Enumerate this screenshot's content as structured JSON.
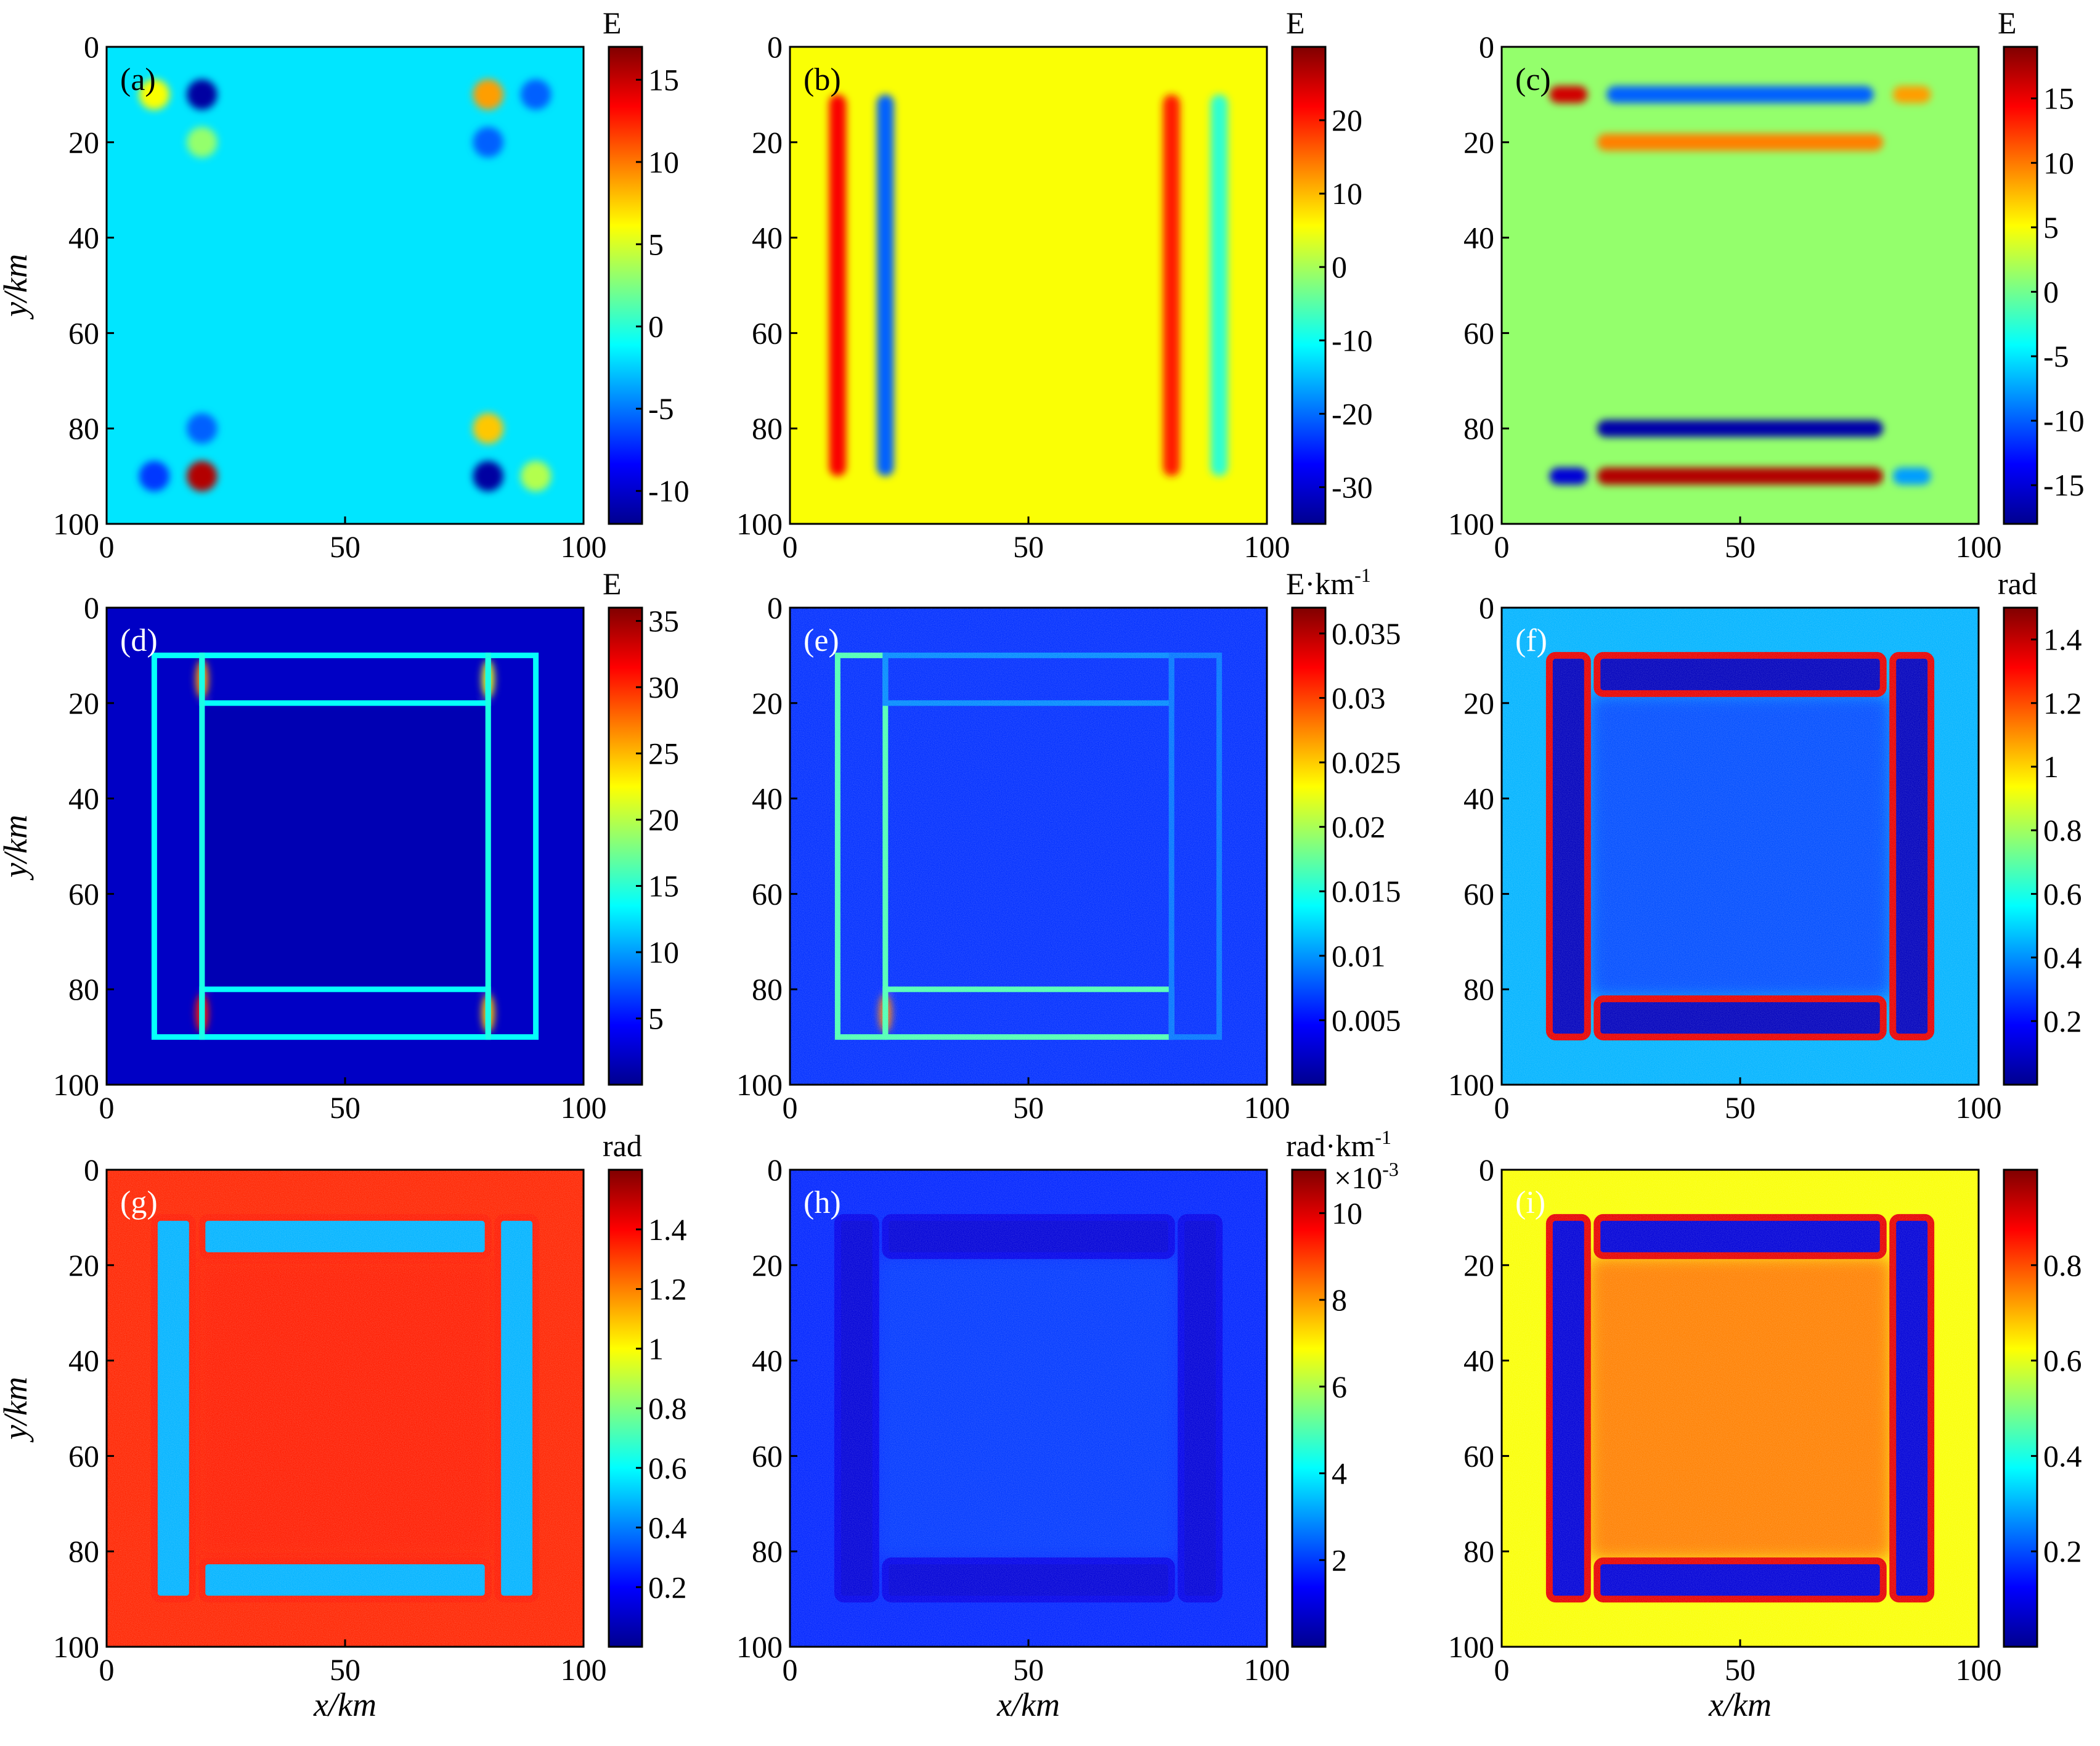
{
  "colors": {
    "jet": [
      "#00008f",
      "#0000ff",
      "#0080ff",
      "#00ffff",
      "#80ff80",
      "#ffff00",
      "#ff8000",
      "#ff0000",
      "#800000"
    ],
    "label_dark": "#000000",
    "label_light": "#ffffff"
  },
  "axis_titles": {
    "x": "x/km",
    "y": "y/km"
  },
  "chart_data": [
    {
      "type": "heatmap",
      "panel_label": "(a)",
      "label_light": false,
      "pattern": "blobs",
      "background": 0.35,
      "xlim": [
        0,
        100
      ],
      "ylim": [
        100,
        0
      ],
      "xticks": [
        "0",
        "50",
        "100"
      ],
      "yticks": [
        "0",
        "20",
        "40",
        "60",
        "80",
        "100"
      ],
      "colorbar": {
        "unit": "E",
        "min": -12,
        "max": 17,
        "ticks": [
          {
            "v": -10,
            "t": "-10"
          },
          {
            "v": -5,
            "t": "-5"
          },
          {
            "v": 0,
            "t": "0"
          },
          {
            "v": 5,
            "t": "5"
          },
          {
            "v": 10,
            "t": "10"
          },
          {
            "v": 15,
            "t": "15"
          }
        ]
      },
      "features": [
        {
          "x": 10,
          "y": 10,
          "v": 0.62
        },
        {
          "x": 20,
          "y": 10,
          "v": 0.02
        },
        {
          "x": 20,
          "y": 20,
          "v": 0.52
        },
        {
          "x": 80,
          "y": 10,
          "v": 0.72
        },
        {
          "x": 90,
          "y": 10,
          "v": 0.22
        },
        {
          "x": 80,
          "y": 20,
          "v": 0.22
        },
        {
          "x": 10,
          "y": 90,
          "v": 0.18
        },
        {
          "x": 20,
          "y": 90,
          "v": 0.95
        },
        {
          "x": 20,
          "y": 80,
          "v": 0.22
        },
        {
          "x": 80,
          "y": 90,
          "v": 0.02
        },
        {
          "x": 90,
          "y": 90,
          "v": 0.55
        },
        {
          "x": 80,
          "y": 80,
          "v": 0.68
        }
      ]
    },
    {
      "type": "heatmap",
      "panel_label": "(b)",
      "label_light": false,
      "pattern": "vbars",
      "background": 0.62,
      "xlim": [
        0,
        100
      ],
      "ylim": [
        100,
        0
      ],
      "xticks": [
        "0",
        "50",
        "100"
      ],
      "yticks": [
        "0",
        "20",
        "40",
        "60",
        "80",
        "100"
      ],
      "colorbar": {
        "unit": "E",
        "min": -35,
        "max": 30,
        "ticks": [
          {
            "v": -30,
            "t": "-30"
          },
          {
            "v": -20,
            "t": "-20"
          },
          {
            "v": -10,
            "t": "-10"
          },
          {
            "v": 0,
            "t": "0"
          },
          {
            "v": 10,
            "t": "10"
          },
          {
            "v": 20,
            "t": "20"
          }
        ]
      },
      "features": [
        {
          "x": 10,
          "y1": 10,
          "y2": 90,
          "v": 0.88
        },
        {
          "x": 20,
          "y1": 10,
          "y2": 90,
          "v": 0.22
        },
        {
          "x": 80,
          "y1": 10,
          "y2": 90,
          "v": 0.85
        },
        {
          "x": 90,
          "y1": 10,
          "y2": 90,
          "v": 0.42
        }
      ]
    },
    {
      "type": "heatmap",
      "panel_label": "(c)",
      "label_light": false,
      "pattern": "hbars",
      "background": 0.52,
      "xlim": [
        0,
        100
      ],
      "ylim": [
        100,
        0
      ],
      "xticks": [
        "0",
        "50",
        "100"
      ],
      "yticks": [
        "0",
        "20",
        "40",
        "60",
        "80",
        "100"
      ],
      "colorbar": {
        "unit": "E",
        "min": -18,
        "max": 19,
        "ticks": [
          {
            "v": -15,
            "t": "-15"
          },
          {
            "v": -10,
            "t": "-10"
          },
          {
            "v": -5,
            "t": "-5"
          },
          {
            "v": 0,
            "t": "0"
          },
          {
            "v": 5,
            "t": "5"
          },
          {
            "v": 10,
            "t": "10"
          },
          {
            "v": 15,
            "t": "15"
          }
        ]
      },
      "features": [
        {
          "y": 10,
          "x1": 10,
          "x2": 18,
          "v": 0.92
        },
        {
          "y": 10,
          "x1": 22,
          "x2": 78,
          "v": 0.22
        },
        {
          "y": 10,
          "x1": 82,
          "x2": 90,
          "v": 0.72
        },
        {
          "y": 20,
          "x1": 20,
          "x2": 80,
          "v": 0.75
        },
        {
          "y": 80,
          "x1": 20,
          "x2": 80,
          "v": 0.03
        },
        {
          "y": 90,
          "x1": 10,
          "x2": 18,
          "v": 0.08
        },
        {
          "y": 90,
          "x1": 20,
          "x2": 80,
          "v": 0.95
        },
        {
          "y": 90,
          "x1": 82,
          "x2": 90,
          "v": 0.28
        }
      ]
    },
    {
      "type": "heatmap",
      "panel_label": "(d)",
      "label_light": true,
      "pattern": "edges",
      "background": 0.06,
      "inner": 0.04,
      "xlim": [
        0,
        100
      ],
      "ylim": [
        100,
        0
      ],
      "xticks": [
        "0",
        "50",
        "100"
      ],
      "yticks": [
        "0",
        "20",
        "40",
        "60",
        "80",
        "100"
      ],
      "colorbar": {
        "unit": "E",
        "min": 0,
        "max": 36,
        "ticks": [
          {
            "v": 5,
            "t": "5"
          },
          {
            "v": 10,
            "t": "10"
          },
          {
            "v": 15,
            "t": "15"
          },
          {
            "v": 20,
            "t": "20"
          },
          {
            "v": 25,
            "t": "25"
          },
          {
            "v": 30,
            "t": "30"
          },
          {
            "v": 35,
            "t": "35"
          }
        ]
      },
      "features": [
        {
          "x1": 10,
          "y1": 10,
          "x2": 90,
          "y2": 90,
          "v": 0.38
        },
        {
          "x1": 20,
          "y1": 10,
          "x2": 80,
          "y2": 20,
          "v": 0.38
        },
        {
          "x1": 20,
          "y1": 80,
          "x2": 80,
          "y2": 90,
          "v": 0.38
        },
        {
          "x1": 20,
          "y1": 10,
          "x2": 20,
          "y2": 90,
          "v": 0.4
        },
        {
          "x1": 80,
          "y1": 10,
          "x2": 80,
          "y2": 90,
          "v": 0.4
        }
      ],
      "hot": [
        {
          "x": 20,
          "y": 15,
          "v": 0.72
        },
        {
          "x": 80,
          "y": 15,
          "v": 0.6
        },
        {
          "x": 20,
          "y": 85,
          "v": 0.85
        },
        {
          "x": 80,
          "y": 85,
          "v": 0.68
        }
      ]
    },
    {
      "type": "heatmap",
      "panel_label": "(e)",
      "label_light": true,
      "pattern": "edges",
      "background": 0.17,
      "inner": 0.17,
      "noise": true,
      "xlim": [
        0,
        100
      ],
      "ylim": [
        100,
        0
      ],
      "xticks": [
        "0",
        "50",
        "100"
      ],
      "yticks": [
        "0",
        "20",
        "40",
        "60",
        "80",
        "100"
      ],
      "colorbar": {
        "unit": "E·km-1",
        "min": 0,
        "max": 0.037,
        "ticks": [
          {
            "v": 0.005,
            "t": "0.005"
          },
          {
            "v": 0.01,
            "t": "0.01"
          },
          {
            "v": 0.015,
            "t": "0.015"
          },
          {
            "v": 0.02,
            "t": "0.02"
          },
          {
            "v": 0.025,
            "t": "0.025"
          },
          {
            "v": 0.03,
            "t": "0.03"
          },
          {
            "v": 0.035,
            "t": "0.035"
          }
        ]
      },
      "features": [
        {
          "x1": 10,
          "y1": 10,
          "x2": 20,
          "y2": 90,
          "v": 0.45
        },
        {
          "x1": 20,
          "y1": 80,
          "x2": 80,
          "y2": 90,
          "v": 0.45
        },
        {
          "x1": 20,
          "y1": 10,
          "x2": 80,
          "y2": 20,
          "v": 0.26
        },
        {
          "x1": 80,
          "y1": 10,
          "x2": 90,
          "y2": 90,
          "v": 0.24
        }
      ],
      "hot": [
        {
          "x": 20,
          "y": 85,
          "v": 0.75
        }
      ]
    },
    {
      "type": "heatmap",
      "panel_label": "(f)",
      "label_light": true,
      "pattern": "frames",
      "background": 0.3,
      "inner": 0.2,
      "noise": true,
      "xlim": [
        0,
        100
      ],
      "ylim": [
        100,
        0
      ],
      "xticks": [
        "0",
        "50",
        "100"
      ],
      "yticks": [
        "0",
        "20",
        "40",
        "60",
        "80",
        "100"
      ],
      "colorbar": {
        "unit": "rad",
        "min": 0,
        "max": 1.5,
        "ticks": [
          {
            "v": 0.2,
            "t": "0.2"
          },
          {
            "v": 0.4,
            "t": "0.4"
          },
          {
            "v": 0.6,
            "t": "0.6"
          },
          {
            "v": 0.8,
            "t": "0.8"
          },
          {
            "v": 1,
            "t": "1"
          },
          {
            "v": 1.2,
            "t": "1.2"
          },
          {
            "v": 1.4,
            "t": "1.4"
          }
        ]
      },
      "frame_fill": 0.05,
      "frame_edge": 0.9
    },
    {
      "type": "heatmap",
      "panel_label": "(g)",
      "label_light": true,
      "pattern": "frames",
      "background": 0.84,
      "inner": 0.85,
      "noise": true,
      "xlim": [
        0,
        100
      ],
      "ylim": [
        100,
        0
      ],
      "xticks": [
        "0",
        "50",
        "100"
      ],
      "yticks": [
        "0",
        "20",
        "40",
        "60",
        "80",
        "100"
      ],
      "colorbar": {
        "unit": "rad",
        "min": 0,
        "max": 1.6,
        "ticks": [
          {
            "v": 0.2,
            "t": "0.2"
          },
          {
            "v": 0.4,
            "t": "0.4"
          },
          {
            "v": 0.6,
            "t": "0.6"
          },
          {
            "v": 0.8,
            "t": "0.8"
          },
          {
            "v": 1,
            "t": "1"
          },
          {
            "v": 1.2,
            "t": "1.2"
          },
          {
            "v": 1.4,
            "t": "1.4"
          }
        ]
      },
      "frame_fill": 0.3,
      "frame_edge": 0.85
    },
    {
      "type": "heatmap",
      "panel_label": "(h)",
      "label_light": true,
      "pattern": "frames",
      "background": 0.16,
      "inner": 0.18,
      "noise": true,
      "xlim": [
        0,
        100
      ],
      "ylim": [
        100,
        0
      ],
      "xticks": [
        "0",
        "50",
        "100"
      ],
      "yticks": [
        "0",
        "20",
        "40",
        "60",
        "80",
        "100"
      ],
      "colorbar": {
        "unit": "rad·km-1",
        "exponent": "×10-3",
        "min": 0,
        "max": 11,
        "ticks": [
          {
            "v": 2,
            "t": "2"
          },
          {
            "v": 4,
            "t": "4"
          },
          {
            "v": 6,
            "t": "6"
          },
          {
            "v": 8,
            "t": "8"
          },
          {
            "v": 10,
            "t": "10"
          }
        ]
      },
      "frame_fill": 0.08,
      "frame_edge": 0.1
    },
    {
      "type": "heatmap",
      "panel_label": "(i)",
      "label_light": true,
      "pattern": "frames",
      "background": 0.62,
      "inner": 0.75,
      "noise": true,
      "xlim": [
        0,
        100
      ],
      "ylim": [
        100,
        0
      ],
      "xticks": [
        "0",
        "50",
        "100"
      ],
      "yticks": [
        "0",
        "20",
        "40",
        "60",
        "80",
        "100"
      ],
      "colorbar": {
        "unit": "",
        "min": 0,
        "max": 1,
        "ticks": [
          {
            "v": 0.2,
            "t": "0.2"
          },
          {
            "v": 0.4,
            "t": "0.4"
          },
          {
            "v": 0.6,
            "t": "0.6"
          },
          {
            "v": 0.8,
            "t": "0.8"
          }
        ]
      },
      "frame_fill": 0.08,
      "frame_edge": 0.9
    }
  ]
}
